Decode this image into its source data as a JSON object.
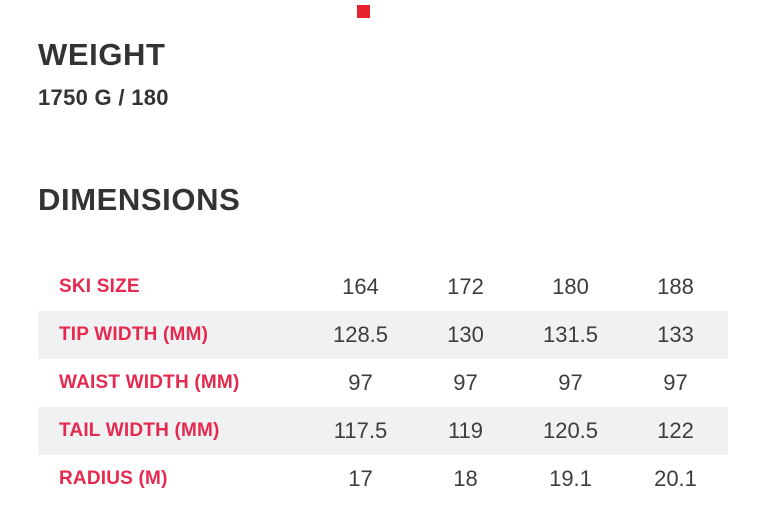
{
  "colors": {
    "accent_red": "#e62a4f",
    "marker_red": "#e8232e",
    "heading_text": "#333333",
    "value_text": "#3d3d3d",
    "row_stripe": "#f0f1f3",
    "background": "#ffffff"
  },
  "weight_section": {
    "title": "WEIGHT",
    "value": "1750 G / 180"
  },
  "dimensions_section": {
    "title": "DIMENSIONS",
    "table": {
      "rows": [
        {
          "label": "SKI SIZE",
          "values": [
            "164",
            "172",
            "180",
            "188"
          ]
        },
        {
          "label": "TIP WIDTH (MM)",
          "values": [
            "128.5",
            "130",
            "131.5",
            "133"
          ]
        },
        {
          "label": "WAIST WIDTH (MM)",
          "values": [
            "97",
            "97",
            "97",
            "97"
          ]
        },
        {
          "label": "TAIL WIDTH (MM)",
          "values": [
            "117.5",
            "119",
            "120.5",
            "122"
          ]
        },
        {
          "label": "RADIUS (M)",
          "values": [
            "17",
            "18",
            "19.1",
            "20.1"
          ]
        }
      ]
    }
  }
}
